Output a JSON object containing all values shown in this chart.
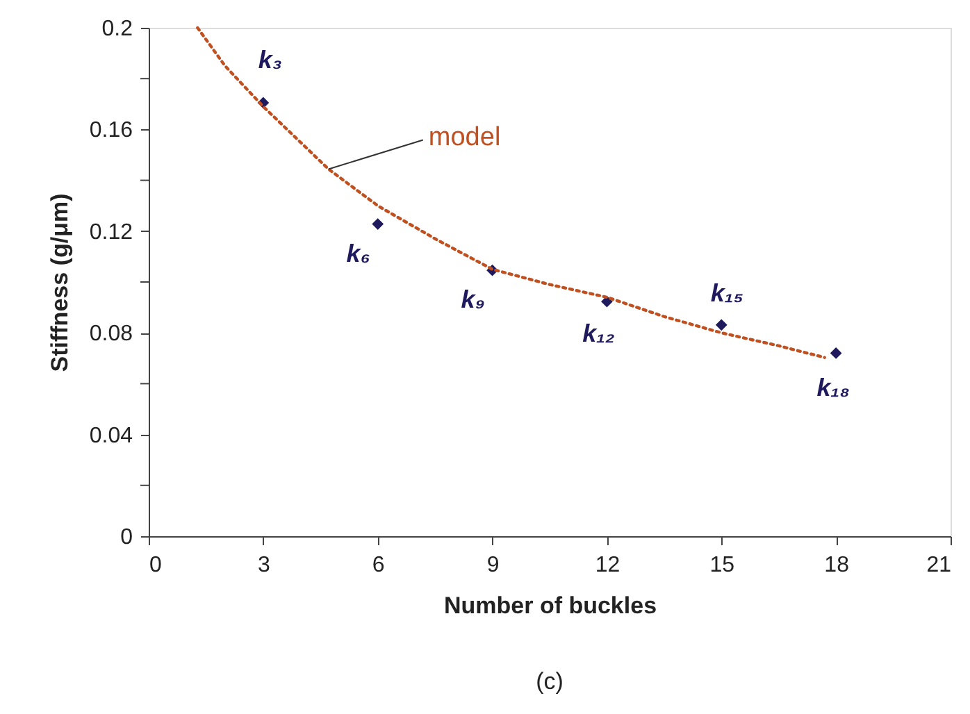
{
  "chart_data": {
    "type": "scatter",
    "xlabel": "Number of buckles",
    "ylabel": "Stiffness (g/μm)",
    "xlim": [
      0,
      21
    ],
    "xticks": [
      0,
      3,
      6,
      9,
      12,
      15,
      18,
      21
    ],
    "ylim": [
      0,
      0.2
    ],
    "yticks": [
      0,
      {
        "value": 0.02,
        "label": null
      },
      0.04,
      {
        "value": 0.06,
        "label": null
      },
      0.08,
      {
        "value": 0.1,
        "label": null
      },
      0.12,
      {
        "value": 0.14,
        "label": null
      },
      0.16,
      {
        "value": 0.18,
        "label": null
      },
      0.2
    ],
    "grid": false,
    "series": [
      {
        "color": "#1f1a5e",
        "marker": "diamond",
        "x": [
          3,
          6,
          9,
          12,
          15,
          18
        ],
        "values": [
          0.1705,
          0.1228,
          0.1046,
          0.0923,
          0.0831,
          0.072
        ]
      },
      {
        "type": "line",
        "name": "model",
        "color": "#c0501f",
        "line_style": "dotted",
        "marker": "none",
        "x": [
          1.28,
          2,
          3,
          4.71,
          6,
          7.5,
          9,
          10.5,
          12,
          13.5,
          15,
          16.5,
          17.7
        ],
        "values": [
          0.2,
          0.185,
          0.169,
          0.1444,
          0.13,
          0.117,
          0.105,
          0.099,
          0.094,
          0.0864,
          0.08,
          0.0749,
          0.0703
        ]
      }
    ],
    "annotations": [
      {
        "text": "k₃",
        "x": 3,
        "y": 0.1705
      },
      {
        "text": "k₆",
        "x": 6,
        "y": 0.1228
      },
      {
        "text": "k₉",
        "x": 9,
        "y": 0.1046
      },
      {
        "text": "k₁₂",
        "x": 12,
        "y": 0.0923
      },
      {
        "text": "k₁₅",
        "x": 15,
        "y": 0.0831
      },
      {
        "text": "k₁₈",
        "x": 18,
        "y": 0.072
      },
      "(c)"
    ]
  }
}
